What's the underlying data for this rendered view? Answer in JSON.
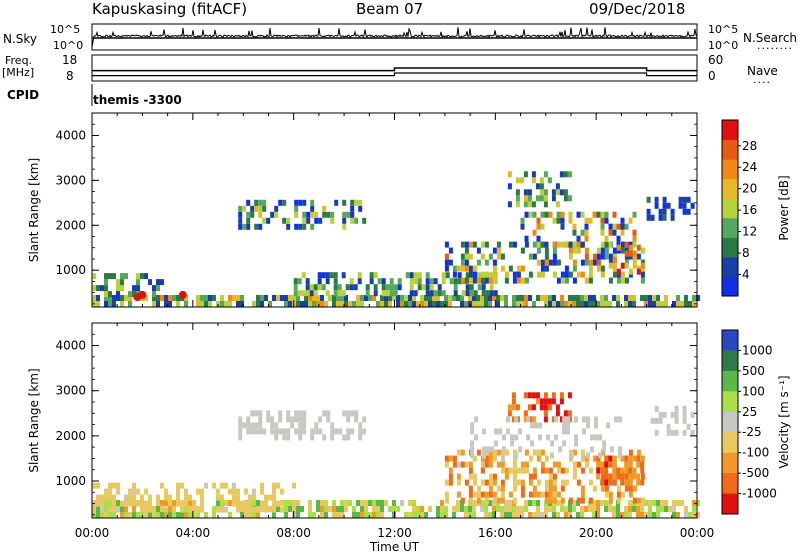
{
  "header": {
    "station": "Kapuskasing (fitACF)",
    "beam": "Beam 07",
    "date": "09/Dec/2018"
  },
  "panels": {
    "nsky_label": "N.Sky",
    "nsearch_label": "N.Search",
    "nsearch_dots": "........",
    "freq_label_1": "Freq.",
    "freq_label_2": "[MHz]",
    "nave_label": "Nave",
    "nave_dots": "....",
    "cpid_label": "CPID",
    "cpid_value": "themis -3300",
    "noise_left_ticks": [
      "10^5",
      "10^0"
    ],
    "noise_right_ticks": [
      "10^5",
      "10^0"
    ],
    "freq_left_ticks": [
      "18",
      "8"
    ],
    "freq_right_ticks": [
      "60",
      "0"
    ]
  },
  "chart_data": [
    {
      "type": "heatmap",
      "name": "power",
      "ylabel": "Slant Range [km]",
      "ylim": [
        180,
        4500
      ],
      "y_ticks": [
        1000,
        2000,
        3000,
        4000
      ],
      "colorbar": {
        "label": "Power [dB]",
        "ticks": [
          4,
          8,
          12,
          16,
          20,
          24,
          28
        ],
        "colors": [
          "#1030e8",
          "#1a3fa8",
          "#2b7a45",
          "#57a75a",
          "#b6d23a",
          "#e8b828",
          "#f08a12",
          "#e85a10",
          "#e01010"
        ]
      }
    },
    {
      "type": "heatmap",
      "name": "velocity",
      "ylabel": "Slant Range [km]",
      "ylim": [
        180,
        4500
      ],
      "y_ticks": [
        1000,
        2000,
        3000,
        4000
      ],
      "xlabel": "Time UT",
      "x_ticks": [
        "00:00",
        "04:00",
        "08:00",
        "12:00",
        "16:00",
        "20:00",
        "00:00"
      ],
      "colorbar": {
        "label": "Velocity [m s⁻¹]",
        "ticks": [
          "1000",
          "500",
          "100",
          "25",
          "-25",
          "-100",
          "-500",
          "-1000"
        ],
        "colors": [
          "#2a48c0",
          "#2e7a48",
          "#58b848",
          "#a8e048",
          "#c8c8c0",
          "#e8c860",
          "#f09a28",
          "#f06a18",
          "#e01010"
        ]
      }
    },
    {
      "type": "line",
      "name": "frequency",
      "ylabel": "Freq. [MHz]",
      "ylim": [
        8,
        18
      ],
      "series": [
        {
          "x": [
            0,
            12,
            12,
            22,
            22,
            24
          ],
          "values": [
            12,
            12,
            13,
            13,
            12,
            12
          ]
        }
      ]
    }
  ],
  "colors": {
    "frame": "#000000"
  }
}
